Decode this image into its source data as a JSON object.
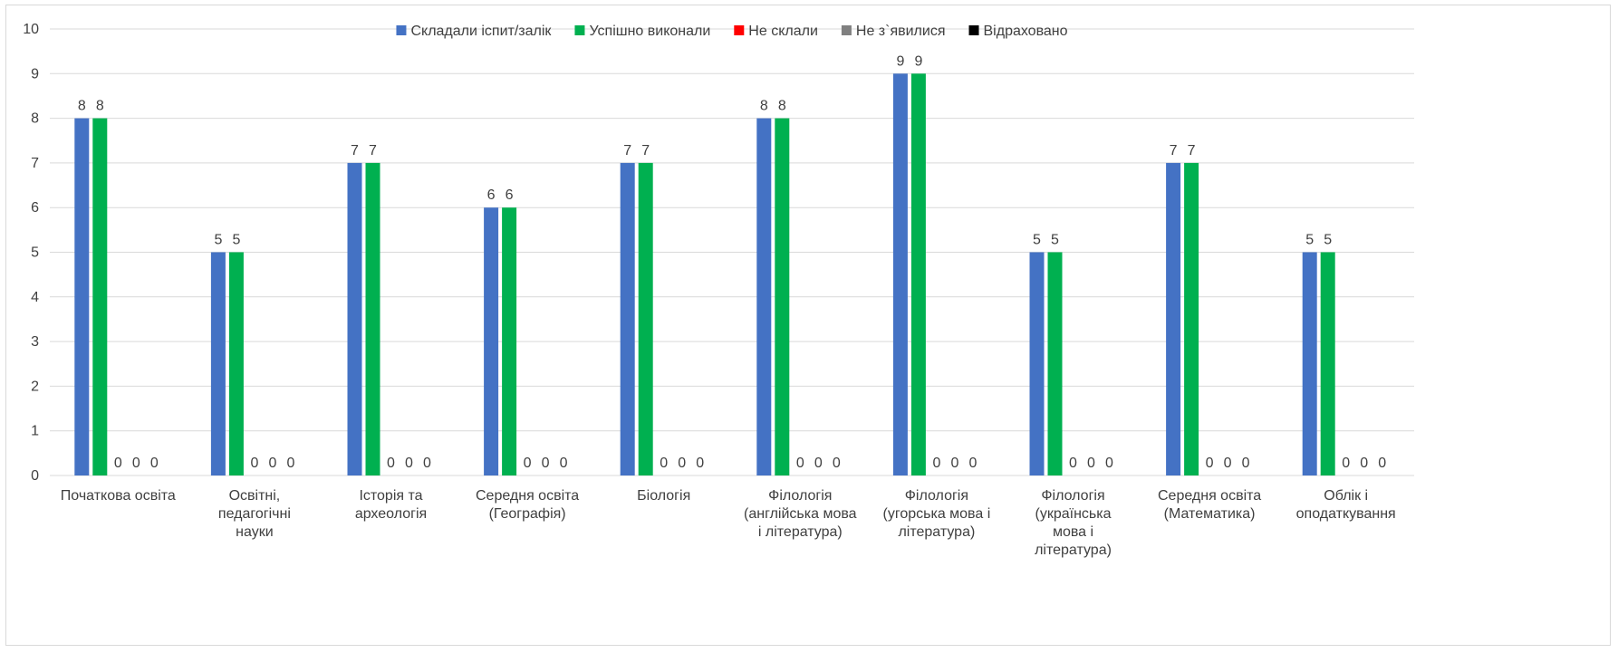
{
  "chart_data": {
    "type": "bar",
    "title": "",
    "xlabel": "",
    "ylabel": "",
    "ylim": [
      0,
      10
    ],
    "yticks": [
      0,
      1,
      2,
      3,
      4,
      5,
      6,
      7,
      8,
      9,
      10
    ],
    "grid": true,
    "legend_position": "top",
    "categories": [
      [
        "Початкова освіта"
      ],
      [
        "Освітні,",
        "педагогічні",
        "науки"
      ],
      [
        "Історія та",
        "археологія"
      ],
      [
        "Середня освіта",
        "(Географія)"
      ],
      [
        "Біологія"
      ],
      [
        "Філологія",
        "(англійська мова",
        "і література)"
      ],
      [
        "Філологія",
        "(угорська мова і",
        "література)"
      ],
      [
        "Філологія",
        "(українська",
        "мова і",
        "література)"
      ],
      [
        "Середня освіта",
        "(Математика)"
      ],
      [
        "Облік і",
        "оподаткування"
      ]
    ],
    "series": [
      {
        "name": "Складали іспит/залік",
        "color": "#4472c4",
        "values": [
          8,
          5,
          7,
          6,
          7,
          8,
          9,
          5,
          7,
          5
        ]
      },
      {
        "name": "Успішно виконали",
        "color": "#00b050",
        "values": [
          8,
          5,
          7,
          6,
          7,
          8,
          9,
          5,
          7,
          5
        ]
      },
      {
        "name": "Не склали",
        "color": "#ff0000",
        "values": [
          0,
          0,
          0,
          0,
          0,
          0,
          0,
          0,
          0,
          0
        ]
      },
      {
        "name": "Не з`явилися",
        "color": "#808080",
        "values": [
          0,
          0,
          0,
          0,
          0,
          0,
          0,
          0,
          0,
          0
        ]
      },
      {
        "name": "Відраховано",
        "color": "#000000",
        "values": [
          0,
          0,
          0,
          0,
          0,
          0,
          0,
          0,
          0,
          0
        ]
      }
    ],
    "data_labels": true
  }
}
